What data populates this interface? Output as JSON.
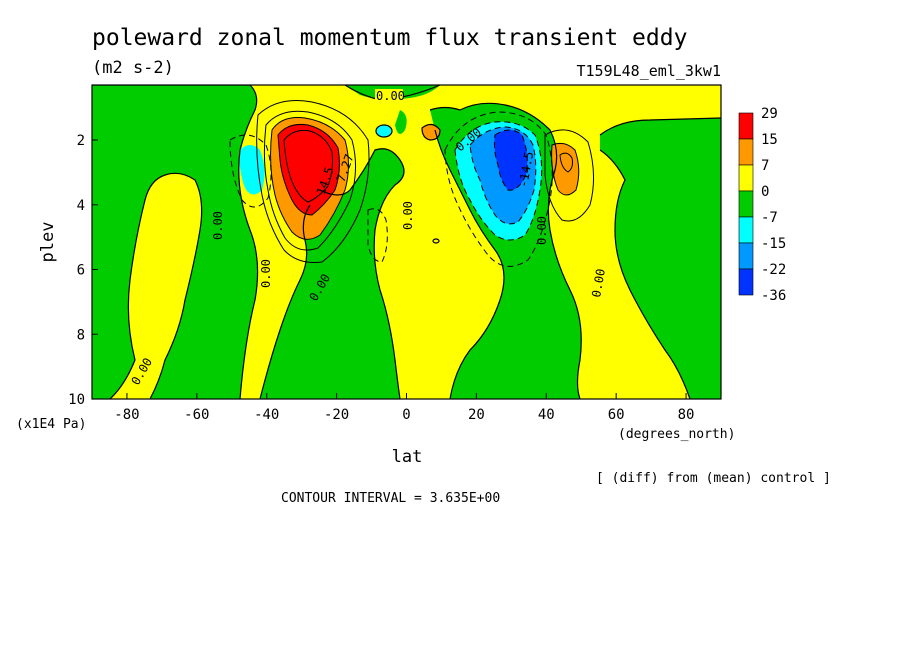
{
  "chart_data": {
    "type": "filled-contour",
    "title": "poleward zonal momentum flux transient eddy",
    "units": "(m2 s-2)",
    "run_label": "T159L48_eml_3kw1",
    "xlabel": "lat",
    "x_units": "(degrees_north)",
    "ylabel": "plev",
    "y_units": "(x1E4 Pa)",
    "xlim": [
      -90,
      90
    ],
    "ylim": [
      0.3,
      10
    ],
    "y_inverted": true,
    "x_ticks": [
      -80,
      -60,
      -40,
      -20,
      0,
      20,
      40,
      60,
      80
    ],
    "x_tick_labels": [
      "-80",
      "-60",
      "-40",
      "-20",
      "0",
      "20",
      "40",
      "60",
      "80"
    ],
    "y_ticks": [
      2,
      4,
      6,
      8,
      10
    ],
    "y_tick_labels": [
      "2",
      "4",
      "6",
      "8",
      "10"
    ],
    "colorbar": {
      "labels": [
        "29",
        "15",
        "7",
        "0",
        "-7",
        "-15",
        "-22",
        "-36"
      ],
      "colors": [
        "#ff0000",
        "#ff9900",
        "#ffff00",
        "#00cc00",
        "#00ffff",
        "#0099ff",
        "#0033ff"
      ]
    },
    "contour_labels": [
      "0.00",
      "14.5",
      "7.27",
      "-14.5",
      "-7.27"
    ],
    "features": [
      {
        "name": "SH positive jet-flux maximum",
        "lat": -30,
        "plev": 2.5,
        "value": 29
      },
      {
        "name": "NH negative flux minimum",
        "lat": 30,
        "plev": 2.5,
        "value": -36
      },
      {
        "name": "NH secondary positive maximum",
        "lat": 45,
        "plev": 2.5,
        "value": 15
      },
      {
        "name": "SH secondary negative minimum",
        "lat": -45,
        "plev": 2.8,
        "value": -15
      }
    ],
    "grid": false,
    "note": "[ (diff) from (mean) control ]",
    "contour_interval": "CONTOUR INTERVAL = 3.635E+00"
  }
}
